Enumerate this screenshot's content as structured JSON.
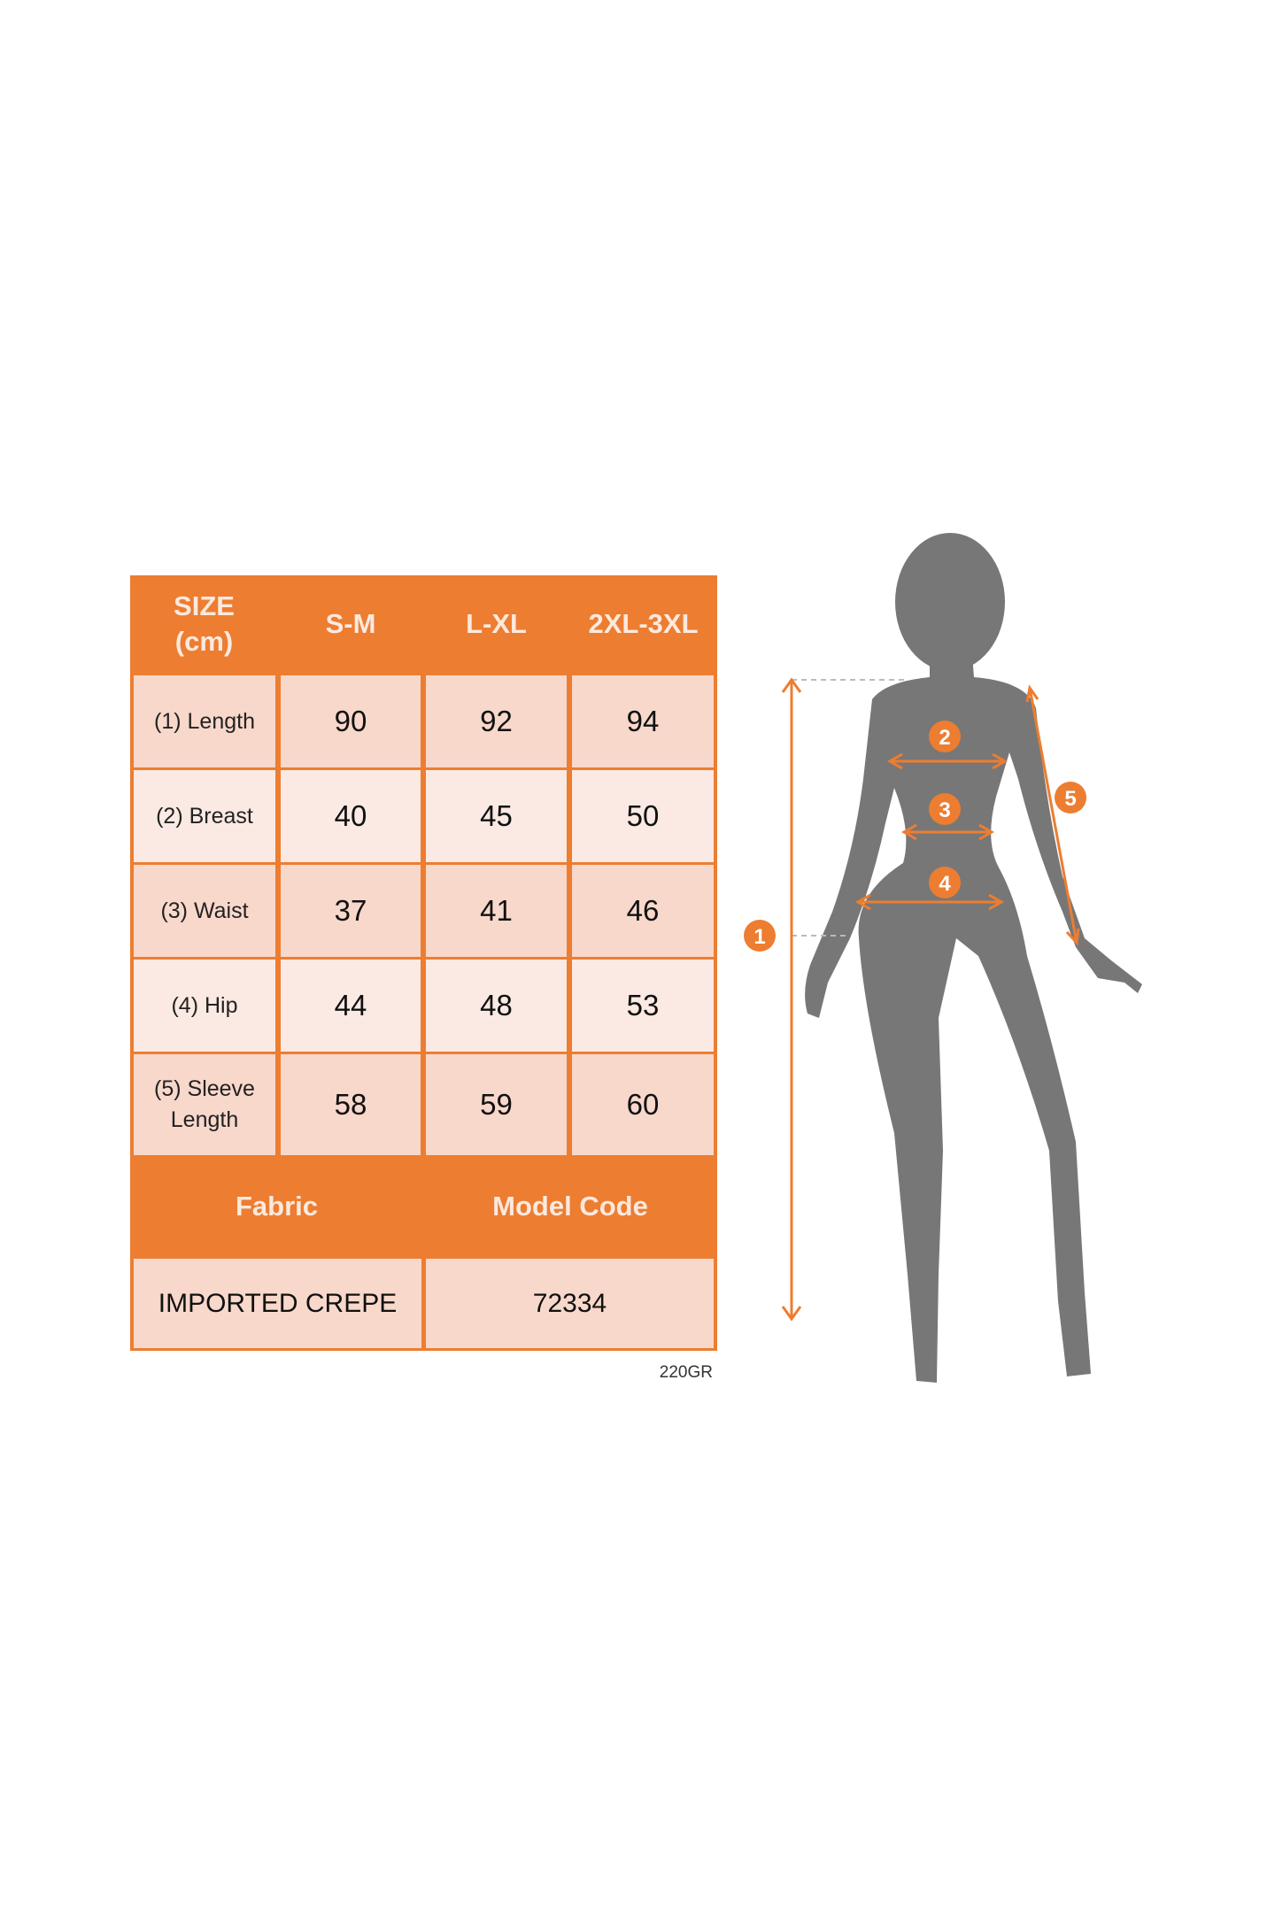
{
  "size_table": {
    "corner_header": "SIZE (cm)",
    "columns": [
      "S-M",
      "L-XL",
      "2XL-3XL"
    ],
    "rows": [
      {
        "label": "(1) Length",
        "values": [
          "90",
          "92",
          "94"
        ]
      },
      {
        "label": "(2) Breast",
        "values": [
          "40",
          "45",
          "50"
        ]
      },
      {
        "label": "(3) Waist",
        "values": [
          "37",
          "41",
          "46"
        ]
      },
      {
        "label": "(4) Hip",
        "values": [
          "44",
          "48",
          "53"
        ]
      },
      {
        "label": "(5) Sleeve Length",
        "values": [
          "58",
          "59",
          "60"
        ]
      }
    ],
    "fabric_header": "Fabric",
    "model_code_header": "Model Code",
    "fabric_value": "IMPORTED CREPE",
    "model_code_value": "72334"
  },
  "weight_note": "220GR",
  "figure": {
    "markers": [
      "1",
      "2",
      "3",
      "4",
      "5"
    ]
  },
  "colors": {
    "accent_orange": "#ED7D31",
    "row_dark": "#F8D8CB",
    "row_light": "#FBEAE3",
    "silhouette": "#777777"
  }
}
